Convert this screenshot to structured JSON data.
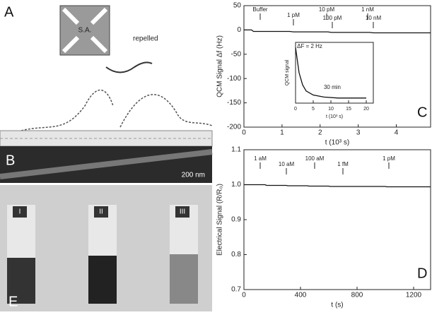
{
  "figure": {
    "panels": [
      "A",
      "B",
      "C",
      "D",
      "E"
    ],
    "sa": "S.A.",
    "repelled": "repelled",
    "scale_bar": "200 nm",
    "vials": [
      "I",
      "II",
      "III"
    ]
  },
  "chart_data": [
    {
      "type": "line",
      "ylabel": "QCM Signal Δf (Hz)",
      "xlabel": "t (10³ s)",
      "xlim": [
        0,
        4.9
      ],
      "xticks": [
        0,
        1,
        2,
        3,
        4
      ],
      "ylim": [
        -200,
        50
      ],
      "yticks": [
        50,
        0,
        -50,
        -100,
        -150,
        -200
      ],
      "annotations": [
        "Buffer",
        "1 pM",
        "10 pM",
        "100 pM",
        "1 nM",
        "10 nM"
      ],
      "series": [
        {
          "color": "#111111",
          "x": [
            0,
            0.2,
            0.25,
            1.2,
            1.3,
            2.2,
            2.3,
            3.3,
            3.4,
            4.6,
            4.9
          ],
          "values": [
            0,
            0,
            -3,
            -3,
            -4,
            -4,
            -5,
            -5,
            -6,
            -6,
            -6
          ]
        }
      ]
    },
    {
      "type": "line",
      "ylabel": "Electrical Signal (R/R₀)",
      "xlabel": "t (s)",
      "xlim": [
        0,
        1320
      ],
      "xticks": [
        0,
        400,
        800,
        1200
      ],
      "ylim": [
        0.7,
        1.1
      ],
      "yticks": [
        0.7,
        0.8,
        0.9,
        {
          "value": 1,
          "label": "1.0"
        },
        1.1
      ],
      "annotations": [
        "1 aM",
        "10 aM",
        "100 aM",
        "1 fM",
        "1 pM"
      ],
      "series": [
        {
          "color": "#111111",
          "x": [
            0,
            150,
            160,
            300,
            310,
            450,
            460,
            600,
            610,
            1000,
            1010,
            1320
          ],
          "values": [
            1.0,
            1.0,
            0.998,
            0.998,
            0.997,
            0.997,
            0.996,
            0.996,
            0.995,
            0.995,
            0.994,
            0.994
          ]
        }
      ]
    },
    {
      "type": "line",
      "ylabel": "QCM signal",
      "xlabel": "t (10³ s)",
      "xlim": [
        0,
        22
      ],
      "xticks": [
        0,
        5,
        10,
        15,
        20
      ],
      "ylim": [
        -60,
        0
      ],
      "annotations": [
        "ΔF = 2 Hz",
        "30 min"
      ],
      "series": [
        {
          "color": "#111111",
          "x": [
            0,
            1,
            2,
            3,
            5,
            8,
            12,
            20
          ],
          "values": [
            -5,
            -30,
            -42,
            -48,
            -52,
            -54,
            -55,
            -55
          ]
        }
      ]
    }
  ]
}
